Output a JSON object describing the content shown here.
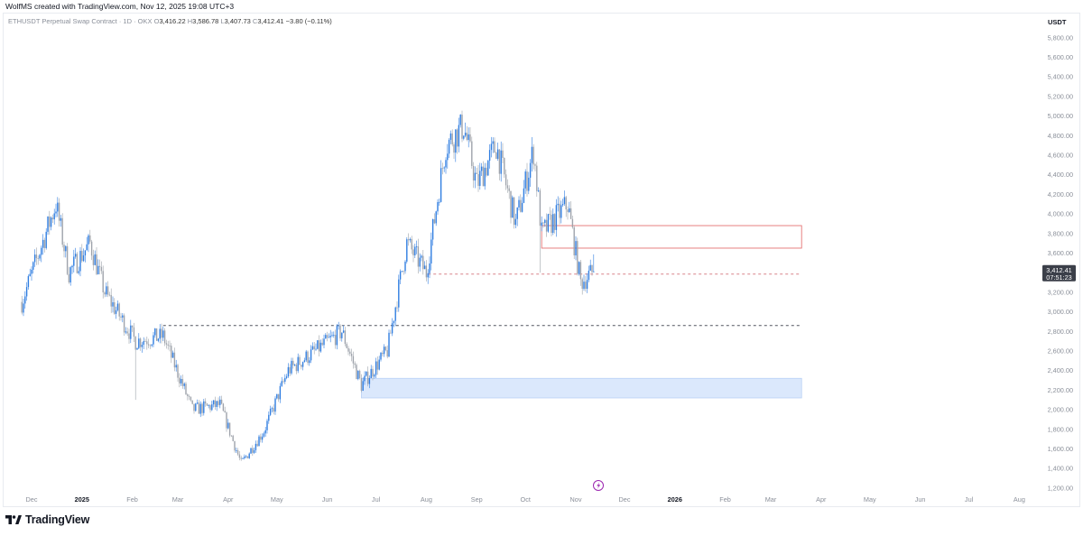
{
  "header": {
    "credit": "WolfMS created with TradingView.com, Nov 12, 2025 19:08 UTC+3"
  },
  "legend": {
    "symbol": "ETHUSDT Perpetual Swap Contract · 1D · OKX",
    "open_label": "O",
    "open": "3,416.22",
    "high_label": "H",
    "high": "3,586.78",
    "low_label": "L",
    "low": "3,407.73",
    "close_label": "C",
    "close": "3,412.41",
    "change": "−3.80 (−0.11%)"
  },
  "axis": {
    "unit": "USDT",
    "price_badge": "3,412.41",
    "countdown_badge": "07:51:23"
  },
  "footer": {
    "logo_text": "TradingView"
  },
  "colors": {
    "up": "#2f7de1",
    "down": "#9ea3ab",
    "demand_zone": "#dbe8fc",
    "supply_zone_border": "#e57373",
    "badge": "#3b3f49"
  },
  "chart_data": {
    "type": "candlestick",
    "title": "ETHUSDT Perpetual Swap Contract · 1D · OKX",
    "y_axis": {
      "ylim": [
        1100,
        5900
      ],
      "ticks": [
        "1,200.00",
        "1,400.00",
        "1,600.00",
        "1,800.00",
        "2,000.00",
        "2,200.00",
        "2,400.00",
        "2,600.00",
        "2,800.00",
        "3,000.00",
        "3,200.00",
        "3,400.00",
        "3,600.00",
        "3,800.00",
        "4,000.00",
        "4,200.00",
        "4,400.00",
        "4,600.00",
        "4,800.00",
        "5,000.00",
        "5,200.00",
        "5,400.00",
        "5,600.00",
        "5,800.00"
      ],
      "tick_values": [
        1200,
        1400,
        1600,
        1800,
        2000,
        2200,
        2400,
        2600,
        2800,
        3000,
        3200,
        3400,
        3600,
        3800,
        4000,
        4200,
        4400,
        4600,
        4800,
        5000,
        5200,
        5400,
        5600,
        5800
      ]
    },
    "x_axis": {
      "labels": [
        "Dec",
        "2025",
        "Feb",
        "Mar",
        "Apr",
        "May",
        "Jun",
        "Jul",
        "Aug",
        "Sep",
        "Oct",
        "Nov",
        "Dec",
        "2026",
        "Feb",
        "Mar",
        "Apr",
        "May",
        "Jun",
        "Jul",
        "Aug"
      ],
      "bold": [
        "2025",
        "2026"
      ]
    },
    "price_path": [
      {
        "date": "2024-11-25",
        "price": 3100
      },
      {
        "date": "2024-12-16",
        "price": 4100
      },
      {
        "date": "2024-12-24",
        "price": 3400
      },
      {
        "date": "2025-01-06",
        "price": 3700
      },
      {
        "date": "2025-01-15",
        "price": 3200
      },
      {
        "date": "2025-02-03",
        "price": 2700
      },
      {
        "date": "2025-02-20",
        "price": 2750
      },
      {
        "date": "2025-03-10",
        "price": 2000
      },
      {
        "date": "2025-03-27",
        "price": 2050
      },
      {
        "date": "2025-04-09",
        "price": 1450
      },
      {
        "date": "2025-04-23",
        "price": 1780
      },
      {
        "date": "2025-05-08",
        "price": 2400
      },
      {
        "date": "2025-06-10",
        "price": 2800
      },
      {
        "date": "2025-06-22",
        "price": 2250
      },
      {
        "date": "2025-07-08",
        "price": 2600
      },
      {
        "date": "2025-07-20",
        "price": 3700
      },
      {
        "date": "2025-08-01",
        "price": 3400
      },
      {
        "date": "2025-08-13",
        "price": 4700
      },
      {
        "date": "2025-08-24",
        "price": 4900
      },
      {
        "date": "2025-09-01",
        "price": 4300
      },
      {
        "date": "2025-09-13",
        "price": 4700
      },
      {
        "date": "2025-09-25",
        "price": 3900
      },
      {
        "date": "2025-10-06",
        "price": 4650
      },
      {
        "date": "2025-10-11",
        "price": 3800
      },
      {
        "date": "2025-10-27",
        "price": 4100
      },
      {
        "date": "2025-11-04",
        "price": 3300
      },
      {
        "date": "2025-11-12",
        "price": 3412.41
      }
    ],
    "spikes": [
      {
        "date": "2025-02-03",
        "low": 2100
      },
      {
        "date": "2025-10-10",
        "low": 3400
      }
    ],
    "annotations": {
      "demand_zone": {
        "from": "2025-06-22",
        "to": "2026-03-20",
        "low": 2120,
        "high": 2320
      },
      "supply_zone": {
        "from": "2025-10-11",
        "to": "2026-03-20",
        "low": 3650,
        "high": 3880
      },
      "level_line_dark": {
        "from": "2025-02-20",
        "to": "2026-03-20",
        "price": 2860
      },
      "level_line_red": {
        "from": "2025-08-02",
        "to": "2026-03-20",
        "price": 3385
      }
    },
    "last_price": 3412.41
  }
}
